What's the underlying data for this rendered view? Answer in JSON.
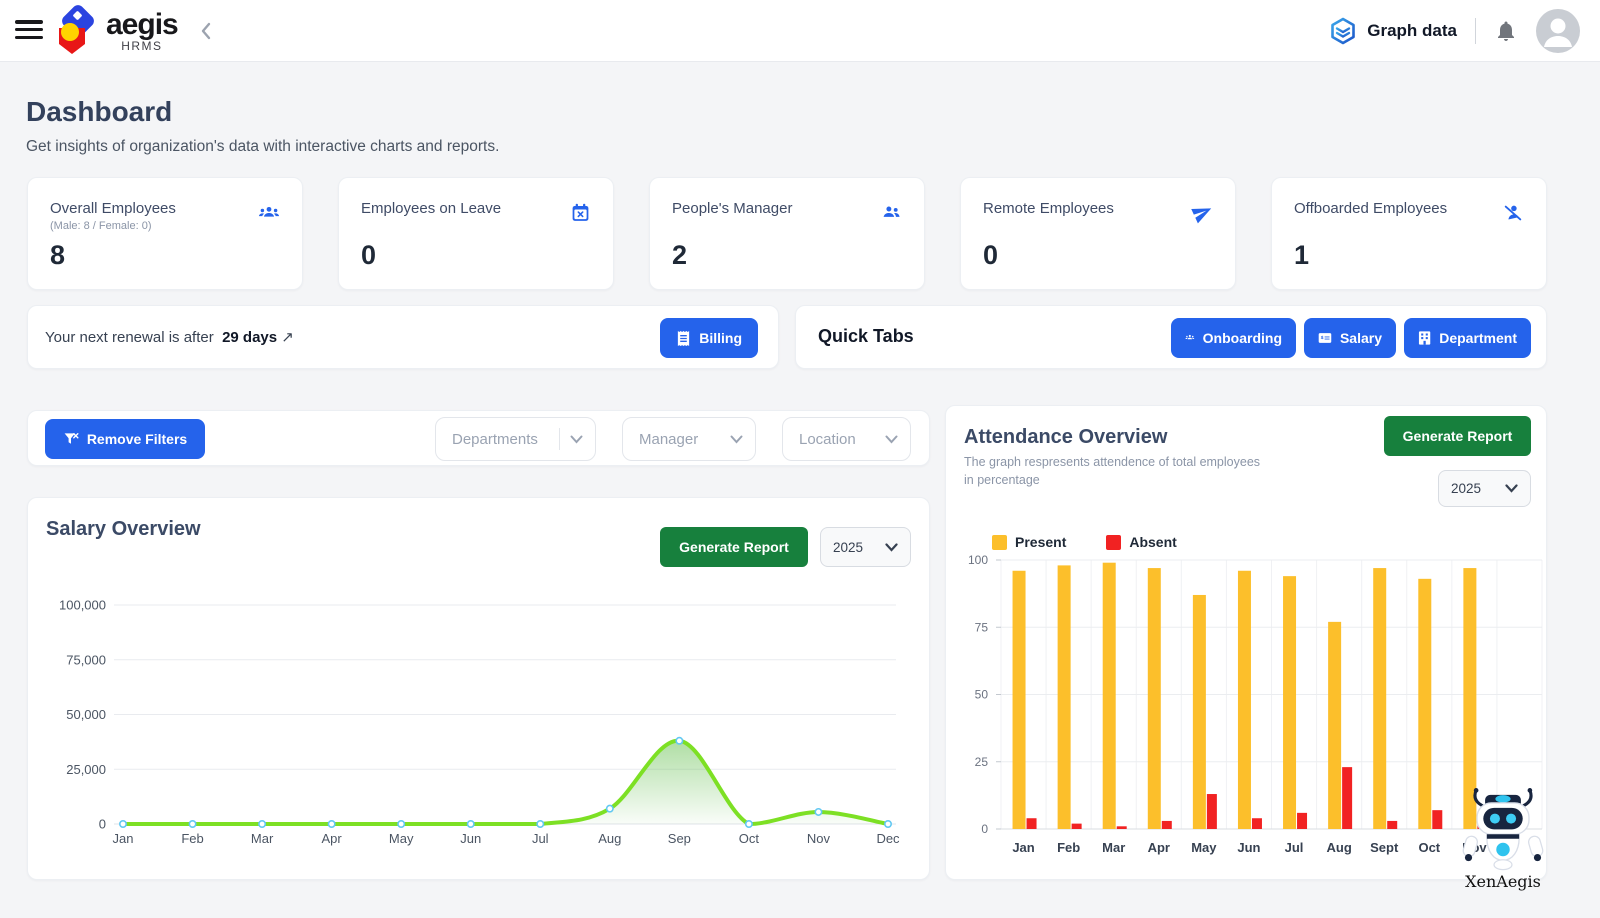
{
  "header": {
    "brand_name": "aegis",
    "brand_sub": "HRMS",
    "graph_data_label": "Graph data"
  },
  "page": {
    "title": "Dashboard",
    "subtitle": "Get insights of organization's data with interactive charts and reports."
  },
  "stats": {
    "cards": [
      {
        "label": "Overall Employees",
        "sublabel": "(Male: 8 / Female: 0)",
        "value": "8",
        "icon": "people-group-icon"
      },
      {
        "label": "Employees on Leave",
        "value": "0",
        "icon": "calendar-x-icon"
      },
      {
        "label": "People's Manager",
        "value": "2",
        "icon": "two-people-icon"
      },
      {
        "label": "Remote Employees",
        "value": "0",
        "icon": "send-icon"
      },
      {
        "label": "Offboarded Employees",
        "value": "1",
        "icon": "person-off-icon"
      }
    ]
  },
  "renewal": {
    "text_prefix": "Your next renewal is after",
    "days": "29 days",
    "arrow": "↗",
    "billing_label": "Billing"
  },
  "quick_tabs": {
    "title": "Quick Tabs",
    "buttons": [
      {
        "label": "Onboarding",
        "icon": "people-group-icon"
      },
      {
        "label": "Salary",
        "icon": "salary-card-icon"
      },
      {
        "label": "Department",
        "icon": "building-icon"
      }
    ]
  },
  "filters": {
    "remove_label": "Remove Filters",
    "dropdowns": [
      {
        "placeholder": "Departments"
      },
      {
        "placeholder": "Manager"
      },
      {
        "placeholder": "Location"
      }
    ]
  },
  "salary_panel": {
    "title": "Salary Overview",
    "generate_label": "Generate Report",
    "year": "2025"
  },
  "attendance_panel": {
    "title": "Attendance Overview",
    "subtitle_line1": "The graph respresents attendence of total employees",
    "subtitle_line2": "in percentage",
    "generate_label": "Generate Report",
    "year": "2025"
  },
  "mascot": {
    "label": "XenAegis"
  },
  "colors": {
    "accent_blue": "#2563eb",
    "button_green": "#17803d",
    "line_green": "#7de024",
    "marker_blue": "#62c8f2",
    "present_yellow": "#fcbf2b",
    "absent_red": "#f12222"
  },
  "chart_data": [
    {
      "id": "salary",
      "type": "area",
      "title": "Salary Overview",
      "x": [
        "Jan",
        "Feb",
        "Mar",
        "Apr",
        "May",
        "Jun",
        "Jul",
        "Aug",
        "Sep",
        "Oct",
        "Nov",
        "Dec"
      ],
      "values": [
        0,
        0,
        0,
        0,
        0,
        0,
        0,
        7000,
        38000,
        0,
        5500,
        0
      ],
      "ylim": [
        0,
        100000
      ],
      "yticks": [
        0,
        25000,
        50000,
        75000,
        100000
      ],
      "ytick_labels": [
        "0",
        "25,000",
        "50,000",
        "75,000",
        "100,000"
      ],
      "grid": "horizontal",
      "line_color": "#7de024",
      "marker_stroke": "#62c8f2"
    },
    {
      "id": "attendance",
      "type": "bar",
      "title": "Attendance Overview",
      "categories": [
        "Jan",
        "Feb",
        "Mar",
        "Apr",
        "May",
        "Jun",
        "Jul",
        "Aug",
        "Sept",
        "Oct",
        "Nov"
      ],
      "series": [
        {
          "name": "Present",
          "color": "#fcbf2b",
          "values": [
            96,
            98,
            99,
            97,
            87,
            96,
            94,
            77,
            97,
            93,
            97
          ]
        },
        {
          "name": "Absent",
          "color": "#f12222",
          "values": [
            4,
            2,
            1,
            3,
            13,
            4,
            6,
            23,
            3,
            7,
            3
          ]
        }
      ],
      "ylim": [
        0,
        100
      ],
      "yticks": [
        0,
        25,
        50,
        75,
        100
      ],
      "ytick_labels": [
        "0",
        "25",
        "50",
        "75",
        "100"
      ],
      "grid": "both",
      "legend_position": "top"
    }
  ]
}
